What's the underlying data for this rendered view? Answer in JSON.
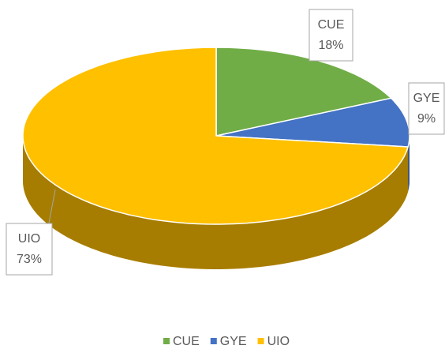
{
  "chart_data": {
    "type": "pie3d",
    "categories": [
      "CUE",
      "GYE",
      "UIO"
    ],
    "values": [
      18,
      9,
      73
    ],
    "value_labels": [
      "18%",
      "9%",
      "73%"
    ],
    "colors": [
      "#70ad47",
      "#4472c4",
      "#ffc000"
    ],
    "legend": "bottom"
  }
}
